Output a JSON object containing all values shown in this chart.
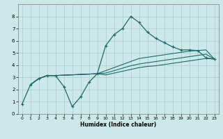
{
  "xlabel": "Humidex (Indice chaleur)",
  "xlim": [
    -0.5,
    23.5
  ],
  "ylim": [
    0,
    9
  ],
  "xticks": [
    0,
    1,
    2,
    3,
    4,
    5,
    6,
    7,
    8,
    9,
    10,
    11,
    12,
    13,
    14,
    15,
    16,
    17,
    18,
    19,
    20,
    21,
    22,
    23
  ],
  "yticks": [
    0,
    1,
    2,
    3,
    4,
    5,
    6,
    7,
    8
  ],
  "bg_color": "#cce8e8",
  "grid_color": "#aacccc",
  "line_color": "#1a6b6b",
  "line1_x": [
    0,
    1,
    2,
    3,
    4,
    5,
    6,
    7,
    8,
    9,
    10,
    11,
    12,
    13,
    14,
    15,
    16,
    17,
    18,
    19,
    20,
    21,
    22,
    23
  ],
  "line1_y": [
    0.8,
    2.4,
    2.9,
    3.15,
    3.15,
    2.25,
    0.6,
    1.4,
    2.6,
    3.3,
    5.6,
    6.5,
    7.0,
    8.0,
    7.5,
    6.7,
    6.2,
    5.85,
    5.5,
    5.25,
    5.25,
    5.2,
    4.6,
    4.5
  ],
  "line2_x": [
    1,
    2,
    3,
    4,
    9,
    10,
    11,
    12,
    13,
    14,
    15,
    16,
    17,
    18,
    19,
    20,
    21,
    22,
    23
  ],
  "line2_y": [
    2.4,
    2.9,
    3.15,
    3.15,
    3.3,
    3.55,
    3.8,
    4.05,
    4.3,
    4.55,
    4.65,
    4.75,
    4.85,
    4.95,
    5.05,
    5.15,
    5.2,
    5.25,
    4.5
  ],
  "line3_x": [
    1,
    2,
    3,
    4,
    9,
    10,
    11,
    12,
    13,
    14,
    15,
    16,
    17,
    18,
    19,
    20,
    21,
    22,
    23
  ],
  "line3_y": [
    2.4,
    2.9,
    3.15,
    3.15,
    3.3,
    3.35,
    3.55,
    3.75,
    3.95,
    4.1,
    4.2,
    4.3,
    4.4,
    4.5,
    4.6,
    4.7,
    4.8,
    4.9,
    4.5
  ],
  "line4_x": [
    1,
    2,
    3,
    4,
    9,
    10,
    11,
    12,
    13,
    14,
    15,
    16,
    17,
    18,
    19,
    20,
    21,
    22,
    23
  ],
  "line4_y": [
    2.4,
    2.9,
    3.15,
    3.15,
    3.3,
    3.2,
    3.35,
    3.5,
    3.65,
    3.8,
    3.9,
    3.95,
    4.05,
    4.15,
    4.25,
    4.35,
    4.45,
    4.55,
    4.5
  ]
}
